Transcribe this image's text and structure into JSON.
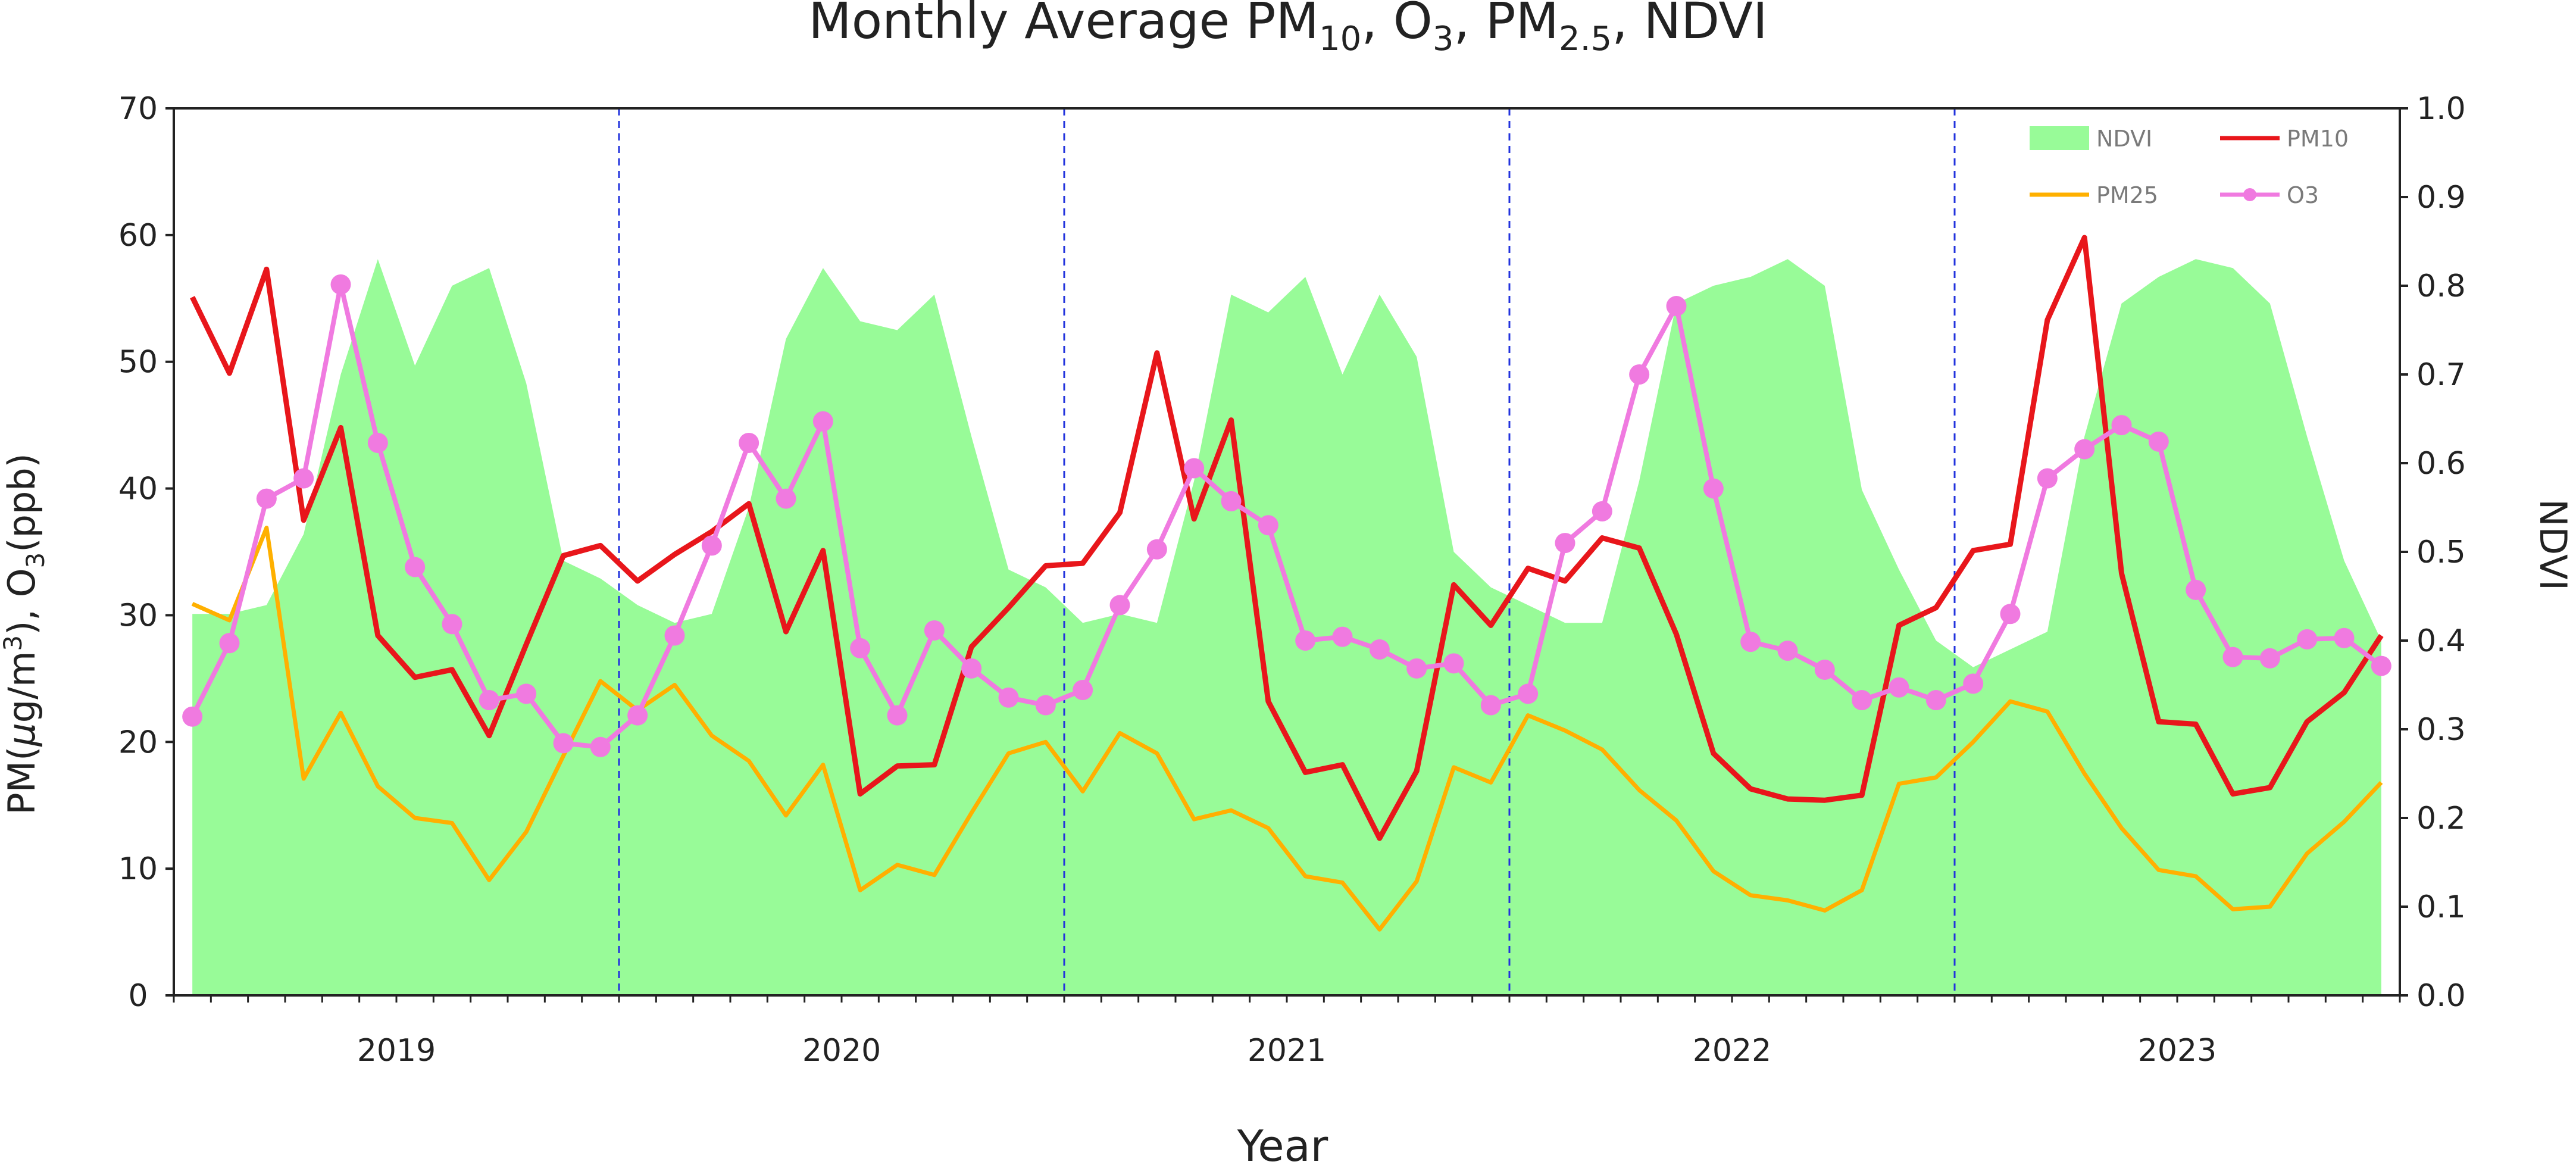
{
  "chart_data": {
    "type": "line",
    "title": "Monthly Average PM10, O3, PM2.5, NDVI",
    "title_parts": {
      "a": "Monthly Average PM",
      "a_sub": "10",
      "b": ", O",
      "b_sub": "3",
      "c": ", PM",
      "c_sub": "2.5",
      "d": ", NDVI"
    },
    "xlabel": "Year",
    "ylabel": "PM(μg/m³), O₃(ppb)",
    "ylabel_parts": {
      "a": "PM(",
      "mu": "μ",
      "b": "g/m",
      "sup": "3",
      "c": "), O",
      "sub": "3",
      "d": "(ppb)"
    },
    "y2label": "NDVI",
    "ylim": [
      0,
      70
    ],
    "y2lim": [
      0,
      1.0
    ],
    "yticks": [
      "0",
      "10",
      "20",
      "30",
      "40",
      "50",
      "60",
      "70"
    ],
    "y2ticks": [
      "0.0",
      "0.1",
      "0.2",
      "0.3",
      "0.4",
      "0.5",
      "0.6",
      "0.7",
      "0.8",
      "0.9",
      "1.0"
    ],
    "year_labels": [
      "2019",
      "2020",
      "2021",
      "2022",
      "2023"
    ],
    "x": [
      "2019-01",
      "2019-02",
      "2019-03",
      "2019-04",
      "2019-05",
      "2019-06",
      "2019-07",
      "2019-08",
      "2019-09",
      "2019-10",
      "2019-11",
      "2019-12",
      "2020-01",
      "2020-02",
      "2020-03",
      "2020-04",
      "2020-05",
      "2020-06",
      "2020-07",
      "2020-08",
      "2020-09",
      "2020-10",
      "2020-11",
      "2020-12",
      "2021-01",
      "2021-02",
      "2021-03",
      "2021-04",
      "2021-05",
      "2021-06",
      "2021-07",
      "2021-08",
      "2021-09",
      "2021-10",
      "2021-11",
      "2021-12",
      "2022-01",
      "2022-02",
      "2022-03",
      "2022-04",
      "2022-05",
      "2022-06",
      "2022-07",
      "2022-08",
      "2022-09",
      "2022-10",
      "2022-11",
      "2022-12",
      "2023-01",
      "2023-02",
      "2023-03",
      "2023-04",
      "2023-05",
      "2023-06",
      "2023-07",
      "2023-08",
      "2023-09",
      "2023-10",
      "2023-11",
      "2023-12"
    ],
    "grid": false,
    "legend": {
      "position": "top-right",
      "entries": [
        "NDVI",
        "PM10",
        "PM25",
        "O3"
      ]
    },
    "series": [
      {
        "name": "NDVI",
        "axis": "right",
        "kind": "area",
        "color": "#98fb98",
        "values": [
          0.43,
          0.43,
          0.44,
          0.52,
          0.7,
          0.83,
          0.71,
          0.8,
          0.82,
          0.69,
          0.49,
          0.47,
          0.44,
          0.42,
          0.43,
          0.55,
          0.74,
          0.82,
          0.76,
          0.75,
          0.79,
          0.63,
          0.48,
          0.46,
          0.42,
          0.43,
          0.42,
          0.58,
          0.79,
          0.77,
          0.81,
          0.7,
          0.79,
          0.72,
          0.5,
          0.46,
          0.44,
          0.42,
          0.42,
          0.58,
          0.78,
          0.8,
          0.81,
          0.83,
          0.8,
          0.57,
          0.48,
          0.4,
          0.37,
          0.39,
          0.41,
          0.63,
          0.78,
          0.81,
          0.83,
          0.82,
          0.78,
          0.63,
          0.49,
          0.4
        ]
      },
      {
        "name": "PM10",
        "axis": "left",
        "kind": "line",
        "color": "#e8161b",
        "values": [
          55.1,
          49.1,
          57.3,
          37.5,
          44.8,
          28.4,
          25.1,
          25.7,
          20.5,
          27.7,
          34.7,
          35.5,
          32.7,
          34.8,
          36.6,
          38.8,
          28.7,
          35.1,
          15.9,
          18.1,
          18.2,
          27.5,
          30.6,
          33.9,
          34.1,
          38.1,
          50.7,
          37.6,
          45.4,
          23.2,
          17.6,
          18.2,
          12.4,
          17.7,
          32.4,
          29.2,
          33.7,
          32.7,
          36.1,
          35.3,
          28.5,
          19.1,
          16.3,
          15.5,
          15.4,
          15.8,
          29.2,
          30.6,
          35.1,
          35.6,
          53.3,
          59.8,
          33.3,
          21.6,
          21.4,
          15.9,
          16.4,
          21.6,
          23.9,
          28.4
        ]
      },
      {
        "name": "PM25",
        "axis": "left",
        "kind": "line",
        "color": "#ffb000",
        "values": [
          30.9,
          29.6,
          36.9,
          17.1,
          22.3,
          16.5,
          14.0,
          13.6,
          9.1,
          12.9,
          18.9,
          24.8,
          22.5,
          24.5,
          20.5,
          18.5,
          14.2,
          18.2,
          8.3,
          10.3,
          9.5,
          14.4,
          19.1,
          20.0,
          16.1,
          20.7,
          19.1,
          13.9,
          14.6,
          13.2,
          9.4,
          8.9,
          5.2,
          9.0,
          18.0,
          16.8,
          22.1,
          20.9,
          19.4,
          16.2,
          13.8,
          9.8,
          7.9,
          7.5,
          6.7,
          8.3,
          16.7,
          17.2,
          20.0,
          23.2,
          22.4,
          17.5,
          13.2,
          9.9,
          9.4,
          6.8,
          7.0,
          11.2,
          13.7,
          16.8
        ]
      },
      {
        "name": "O3",
        "axis": "left",
        "kind": "line-marker",
        "color": "#f07ae0",
        "values": [
          22.0,
          27.8,
          39.2,
          40.8,
          56.1,
          43.6,
          33.8,
          29.3,
          23.3,
          23.8,
          19.9,
          19.6,
          22.1,
          28.4,
          35.5,
          43.6,
          39.2,
          45.3,
          27.4,
          22.1,
          28.8,
          25.8,
          23.5,
          22.9,
          24.1,
          30.8,
          35.2,
          41.6,
          39.0,
          37.1,
          28.0,
          28.3,
          27.3,
          25.8,
          26.2,
          22.9,
          23.8,
          35.7,
          38.2,
          49.0,
          54.4,
          40.0,
          27.9,
          27.2,
          25.7,
          23.3,
          24.3,
          23.3,
          24.6,
          30.1,
          40.8,
          43.1,
          45.0,
          43.7,
          32.0,
          26.7,
          26.6,
          28.1,
          28.2,
          26.0
        ]
      }
    ]
  }
}
